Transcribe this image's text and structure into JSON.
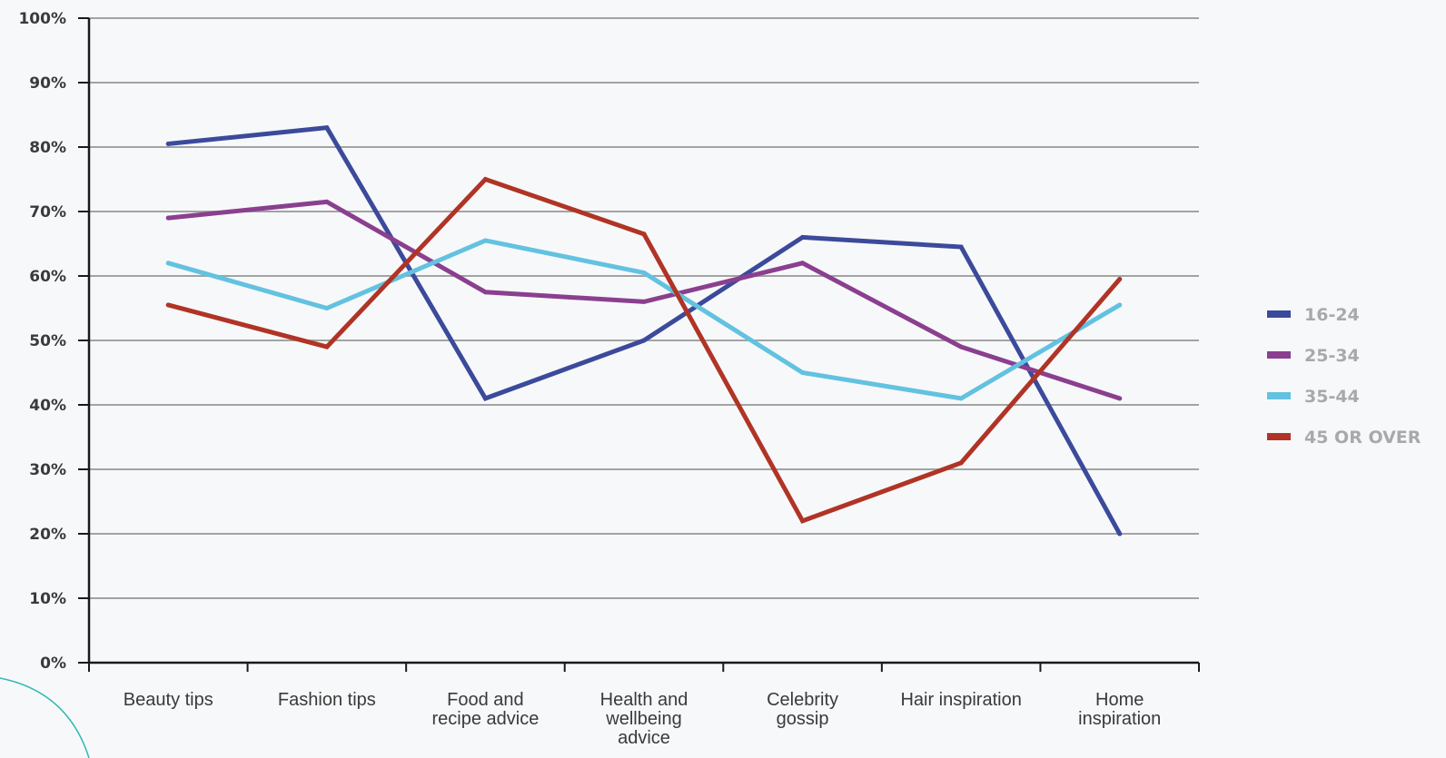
{
  "chart_data": {
    "type": "line",
    "title": "",
    "xlabel": "",
    "ylabel": "",
    "ylim": [
      0,
      100
    ],
    "y_tick_labels": [
      "0%",
      "10%",
      "20%",
      "30%",
      "40%",
      "50%",
      "60%",
      "70%",
      "80%",
      "90%",
      "100%"
    ],
    "categories": [
      "Beauty tips",
      "Fashion tips",
      "Food and recipe advice",
      "Health and wellbeing advice",
      "Celebrity gossip",
      "Hair inspiration",
      "Home inspiration"
    ],
    "category_lines": [
      [
        "Beauty tips"
      ],
      [
        "Fashion tips"
      ],
      [
        "Food and",
        "recipe advice"
      ],
      [
        "Health and",
        "wellbeing",
        "advice"
      ],
      [
        "Celebrity",
        "gossip"
      ],
      [
        "Hair inspiration"
      ],
      [
        "Home",
        "inspiration"
      ]
    ],
    "series": [
      {
        "name": "16-24",
        "color": "#3c4a9b",
        "values": [
          80.5,
          83,
          41,
          50,
          66,
          64.5,
          20
        ]
      },
      {
        "name": "25-34",
        "color": "#8a3f8f",
        "values": [
          69,
          71.5,
          57.5,
          56,
          62,
          49,
          41
        ]
      },
      {
        "name": "35-44",
        "color": "#62c2e0",
        "values": [
          62,
          55,
          65.5,
          60.5,
          45,
          41,
          55.5
        ]
      },
      {
        "name": "45 OR OVER",
        "color": "#b03426",
        "values": [
          55.5,
          49,
          75,
          66.5,
          22,
          31,
          59.5
        ]
      }
    ],
    "grid": true,
    "legend_position": "right"
  }
}
